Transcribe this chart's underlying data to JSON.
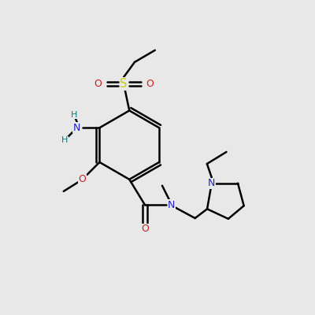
{
  "bg_color": "#e8e8e8",
  "bond_color": "#000000",
  "bond_width": 1.8,
  "figsize": [
    4.0,
    4.0
  ],
  "dpi": 100,
  "atom_colors": {
    "C": "#000000",
    "N": "#2020cc",
    "O": "#cc2020",
    "S": "#cccc00",
    "H": "#008080"
  },
  "font_size": 9.0,
  "xlim": [
    0,
    10
  ],
  "ylim": [
    0,
    10
  ]
}
